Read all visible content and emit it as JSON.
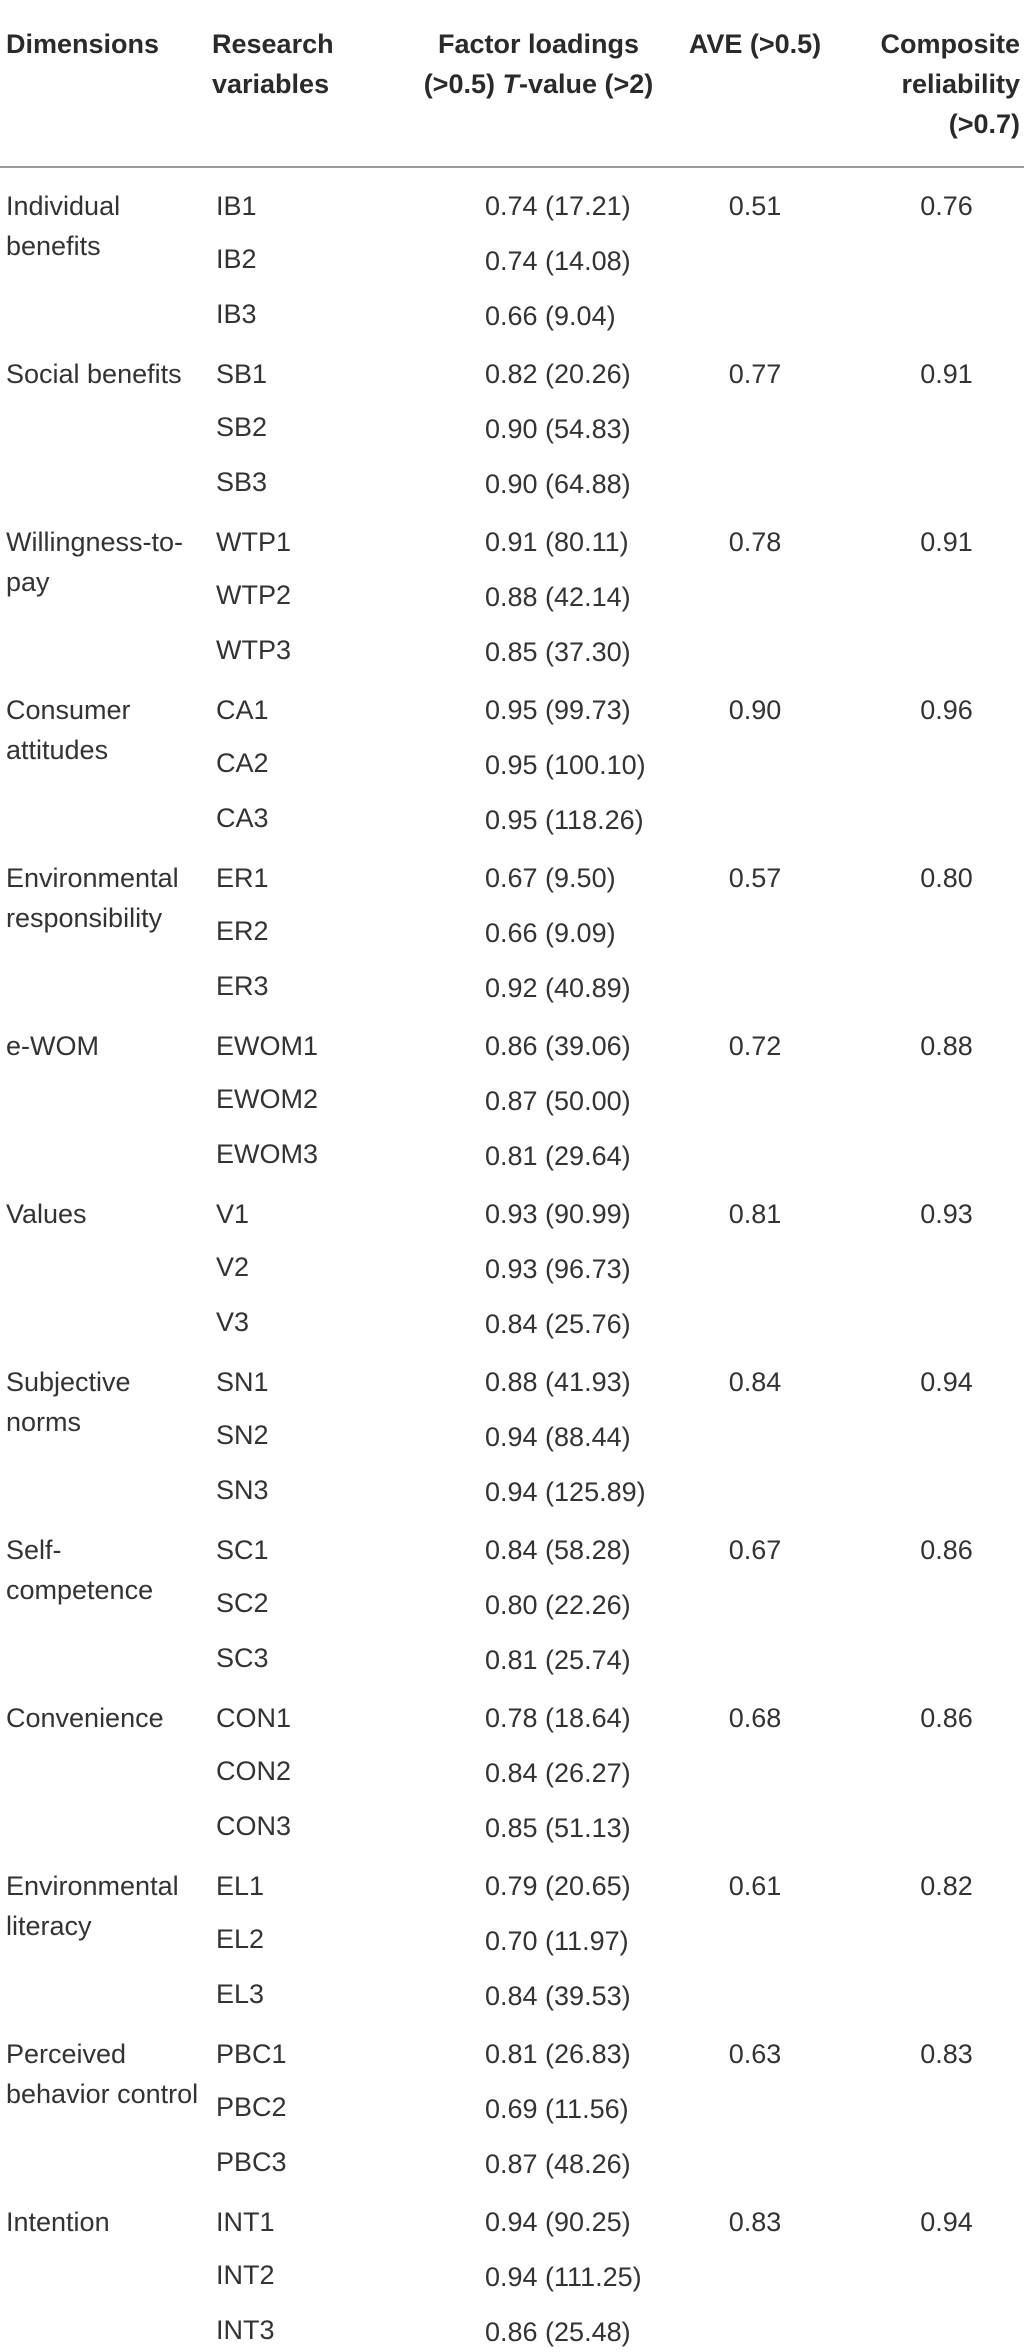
{
  "table": {
    "headers": {
      "dimensions": "Dimensions",
      "research_variables": "Research variables",
      "factor_loadings_prefix": "Factor loadings (>0.5) ",
      "factor_loadings_t": "T",
      "factor_loadings_suffix": "-value (>2)",
      "ave": "AVE (>0.5)",
      "composite_reliability": "Composite reliability (>0.7)"
    },
    "groups": [
      {
        "dimension": "Individual benefits",
        "ave": "0.51",
        "cr": "0.76",
        "rows": [
          {
            "var": "IB1",
            "loading": "0.74 (17.21)"
          },
          {
            "var": "IB2",
            "loading": "0.74 (14.08)"
          },
          {
            "var": "IB3",
            "loading": "0.66 (9.04)"
          }
        ]
      },
      {
        "dimension": "Social benefits",
        "ave": "0.77",
        "cr": "0.91",
        "rows": [
          {
            "var": "SB1",
            "loading": "0.82 (20.26)"
          },
          {
            "var": "SB2",
            "loading": "0.90 (54.83)"
          },
          {
            "var": "SB3",
            "loading": "0.90 (64.88)"
          }
        ]
      },
      {
        "dimension": "Willingness-to-pay",
        "ave": "0.78",
        "cr": "0.91",
        "rows": [
          {
            "var": "WTP1",
            "loading": "0.91 (80.11)"
          },
          {
            "var": "WTP2",
            "loading": "0.88 (42.14)"
          },
          {
            "var": "WTP3",
            "loading": "0.85 (37.30)"
          }
        ]
      },
      {
        "dimension": "Consumer attitudes",
        "ave": "0.90",
        "cr": "0.96",
        "rows": [
          {
            "var": "CA1",
            "loading": "0.95 (99.73)"
          },
          {
            "var": "CA2",
            "loading": "0.95 (100.10)"
          },
          {
            "var": "CA3",
            "loading": "0.95 (118.26)"
          }
        ]
      },
      {
        "dimension": "Environmental responsibility",
        "ave": "0.57",
        "cr": "0.80",
        "rows": [
          {
            "var": "ER1",
            "loading": "0.67 (9.50)"
          },
          {
            "var": "ER2",
            "loading": "0.66 (9.09)"
          },
          {
            "var": "ER3",
            "loading": "0.92 (40.89)"
          }
        ]
      },
      {
        "dimension": "e-WOM",
        "ave": "0.72",
        "cr": "0.88",
        "rows": [
          {
            "var": "EWOM1",
            "loading": "0.86 (39.06)"
          },
          {
            "var": "EWOM2",
            "loading": "0.87 (50.00)"
          },
          {
            "var": "EWOM3",
            "loading": "0.81 (29.64)"
          }
        ]
      },
      {
        "dimension": "Values",
        "ave": "0.81",
        "cr": "0.93",
        "rows": [
          {
            "var": "V1",
            "loading": "0.93 (90.99)"
          },
          {
            "var": "V2",
            "loading": "0.93 (96.73)"
          },
          {
            "var": "V3",
            "loading": "0.84 (25.76)"
          }
        ]
      },
      {
        "dimension": "Subjective norms",
        "ave": "0.84",
        "cr": "0.94",
        "rows": [
          {
            "var": "SN1",
            "loading": "0.88 (41.93)"
          },
          {
            "var": "SN2",
            "loading": "0.94 (88.44)"
          },
          {
            "var": "SN3",
            "loading": "0.94 (125.89)"
          }
        ]
      },
      {
        "dimension": "Self-competence",
        "ave": "0.67",
        "cr": "0.86",
        "rows": [
          {
            "var": "SC1",
            "loading": "0.84 (58.28)"
          },
          {
            "var": "SC2",
            "loading": "0.80 (22.26)"
          },
          {
            "var": "SC3",
            "loading": "0.81 (25.74)"
          }
        ]
      },
      {
        "dimension": "Convenience",
        "ave": "0.68",
        "cr": "0.86",
        "rows": [
          {
            "var": "CON1",
            "loading": "0.78 (18.64)"
          },
          {
            "var": "CON2",
            "loading": "0.84 (26.27)"
          },
          {
            "var": "CON3",
            "loading": "0.85 (51.13)"
          }
        ]
      },
      {
        "dimension": "Environmental literacy",
        "ave": "0.61",
        "cr": "0.82",
        "rows": [
          {
            "var": "EL1",
            "loading": "0.79 (20.65)"
          },
          {
            "var": "EL2",
            "loading": "0.70 (11.97)"
          },
          {
            "var": "EL3",
            "loading": "0.84 (39.53)"
          }
        ]
      },
      {
        "dimension": "Perceived behavior control",
        "ave": "0.63",
        "cr": "0.83",
        "rows": [
          {
            "var": "PBC1",
            "loading": "0.81 (26.83)"
          },
          {
            "var": "PBC2",
            "loading": "0.69 (11.56)"
          },
          {
            "var": "PBC3",
            "loading": "0.87 (48.26)"
          }
        ]
      },
      {
        "dimension": "Intention",
        "ave": "0.83",
        "cr": "0.94",
        "rows": [
          {
            "var": "INT1",
            "loading": "0.94 (90.25)"
          },
          {
            "var": "INT2",
            "loading": "0.94 (111.25)"
          },
          {
            "var": "INT3",
            "loading": "0.86 (25.48)"
          }
        ]
      }
    ]
  }
}
